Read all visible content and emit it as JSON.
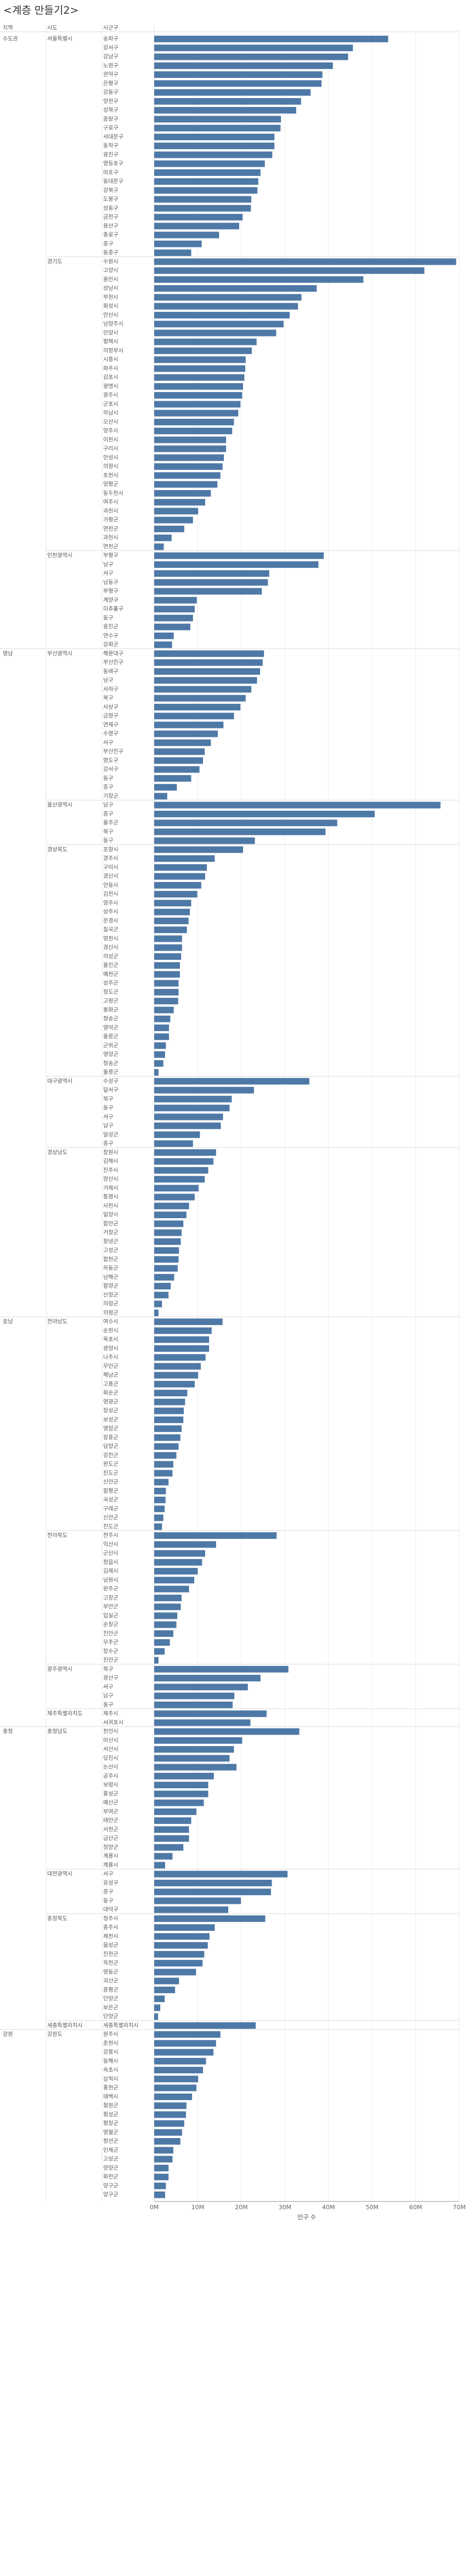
{
  "page_title": "<계층 만들기2>",
  "chart_data": {
    "type": "bar",
    "orientation": "horizontal",
    "column_headers": [
      "지역",
      "시도",
      "시군구"
    ],
    "xlabel": "인구 수",
    "x_ticks": [
      "0M",
      "10M",
      "20M",
      "30M",
      "40M",
      "50M",
      "60M",
      "70M"
    ],
    "xlim": [
      0,
      70
    ],
    "bar_color": "#4e79a7",
    "groups": [
      {
        "region": "수도권",
        "sido": "서울특별시",
        "items": [
          [
            "송파구",
            53.7
          ],
          [
            "강서구",
            45.6
          ],
          [
            "강남구",
            44.5
          ],
          [
            "노원구",
            41.0
          ],
          [
            "관악구",
            38.6
          ],
          [
            "은평구",
            38.4
          ],
          [
            "강동구",
            35.9
          ],
          [
            "양천구",
            33.7
          ],
          [
            "성북구",
            32.6
          ],
          [
            "중랑구",
            29.1
          ],
          [
            "구로구",
            29.0
          ],
          [
            "서대문구",
            27.6
          ],
          [
            "동작구",
            27.6
          ],
          [
            "광진구",
            27.1
          ],
          [
            "영등포구",
            25.4
          ],
          [
            "마포구",
            24.4
          ],
          [
            "동대문구",
            23.9
          ],
          [
            "강북구",
            23.7
          ],
          [
            "도봉구",
            22.3
          ],
          [
            "성동구",
            22.2
          ],
          [
            "금천구",
            20.3
          ],
          [
            "용산구",
            19.5
          ],
          [
            "종로구",
            14.9
          ],
          [
            "중구",
            10.9
          ],
          [
            "동중구",
            8.5
          ]
        ]
      },
      {
        "region": "",
        "sido": "경기도",
        "items": [
          [
            "수원시",
            69.3
          ],
          [
            "고양시",
            62.0
          ],
          [
            "용인시",
            48.0
          ],
          [
            "성남시",
            37.3
          ],
          [
            "부천시",
            33.8
          ],
          [
            "화성시",
            33.0
          ],
          [
            "안산시",
            31.1
          ],
          [
            "남양주시",
            29.7
          ],
          [
            "안양시",
            28.0
          ],
          [
            "평택시",
            23.5
          ],
          [
            "의정부시",
            22.4
          ],
          [
            "시흥시",
            21.0
          ],
          [
            "파주시",
            20.9
          ],
          [
            "김포시",
            20.7
          ],
          [
            "광명시",
            20.4
          ],
          [
            "광주시",
            20.2
          ],
          [
            "군포시",
            19.8
          ],
          [
            "하남시",
            19.3
          ],
          [
            "오산시",
            18.3
          ],
          [
            "양주시",
            17.9
          ],
          [
            "이천시",
            16.5
          ],
          [
            "구리시",
            16.5
          ],
          [
            "안성시",
            16.0
          ],
          [
            "의왕시",
            15.7
          ],
          [
            "포천시",
            15.2
          ],
          [
            "양평군",
            14.5
          ],
          [
            "동두천시",
            13.0
          ],
          [
            "여주시",
            11.7
          ],
          [
            "과천시",
            10.1
          ],
          [
            "가평군",
            8.9
          ],
          [
            "연천군",
            6.9
          ],
          [
            "과천시",
            4.0
          ],
          [
            "연천군",
            2.2
          ]
        ]
      },
      {
        "region": "",
        "sido": "인천광역시",
        "items": [
          [
            "부평구",
            38.9
          ],
          [
            "남구",
            37.7
          ],
          [
            "서구",
            26.4
          ],
          [
            "남동구",
            26.1
          ],
          [
            "부평구",
            24.7
          ],
          [
            "계양구",
            9.8
          ],
          [
            "미추홀구",
            9.3
          ],
          [
            "동구",
            8.9
          ],
          [
            "옹진군",
            8.3
          ],
          [
            "연수구",
            4.5
          ],
          [
            "강화군",
            4.1
          ]
        ]
      },
      {
        "region": "영남",
        "sido": "부산광역시",
        "items": [
          [
            "해운대구",
            25.2
          ],
          [
            "부산진구",
            24.9
          ],
          [
            "동래구",
            24.3
          ],
          [
            "남구",
            23.6
          ],
          [
            "사하구",
            22.3
          ],
          [
            "북구",
            21.0
          ],
          [
            "사상구",
            19.8
          ],
          [
            "금정구",
            18.3
          ],
          [
            "연제구",
            15.9
          ],
          [
            "수영구",
            14.6
          ],
          [
            "서구",
            13.0
          ],
          [
            "부산진구",
            11.6
          ],
          [
            "영도구",
            11.2
          ],
          [
            "강서구",
            10.4
          ],
          [
            "동구",
            8.5
          ],
          [
            "중구",
            5.2
          ],
          [
            "기장군",
            3.0
          ]
        ]
      },
      {
        "region": "",
        "sido": "울산광역시",
        "items": [
          [
            "남구",
            65.7
          ],
          [
            "중구",
            50.6
          ],
          [
            "울주군",
            42.0
          ],
          [
            "북구",
            39.3
          ],
          [
            "동구",
            23.1
          ]
        ]
      },
      {
        "region": "",
        "sido": "경상북도",
        "items": [
          [
            "포항시",
            20.4
          ],
          [
            "경주시",
            13.9
          ],
          [
            "구미시",
            12.1
          ],
          [
            "경산시",
            11.7
          ],
          [
            "안동시",
            10.8
          ],
          [
            "김천시",
            9.9
          ],
          [
            "영주시",
            8.5
          ],
          [
            "상주시",
            8.2
          ],
          [
            "문경시",
            7.9
          ],
          [
            "칠곡군",
            7.5
          ],
          [
            "영천시",
            6.4
          ],
          [
            "경산시",
            6.4
          ],
          [
            "의성군",
            6.2
          ],
          [
            "울진군",
            5.9
          ],
          [
            "예천군",
            5.9
          ],
          [
            "성주군",
            5.6
          ],
          [
            "청도군",
            5.6
          ],
          [
            "고령군",
            5.5
          ],
          [
            "봉화군",
            4.5
          ],
          [
            "청송군",
            3.7
          ],
          [
            "영덕군",
            3.4
          ],
          [
            "울릉군",
            3.4
          ],
          [
            "군위군",
            2.7
          ],
          [
            "영양군",
            2.5
          ],
          [
            "청송군",
            2.1
          ],
          [
            "울릉군",
            1.0
          ]
        ]
      },
      {
        "region": "",
        "sido": "대구광역시",
        "items": [
          [
            "수성구",
            35.6
          ],
          [
            "달서구",
            22.9
          ],
          [
            "북구",
            17.8
          ],
          [
            "동구",
            17.3
          ],
          [
            "서구",
            15.8
          ],
          [
            "남구",
            15.3
          ],
          [
            "달성군",
            10.5
          ],
          [
            "중구",
            8.9
          ]
        ]
      },
      {
        "region": "",
        "sido": "경상남도",
        "items": [
          [
            "창원시",
            14.2
          ],
          [
            "김해시",
            13.6
          ],
          [
            "진주시",
            12.4
          ],
          [
            "양산시",
            11.6
          ],
          [
            "거제시",
            10.2
          ],
          [
            "통영시",
            9.3
          ],
          [
            "사천시",
            8.0
          ],
          [
            "밀양시",
            7.4
          ],
          [
            "함안군",
            6.7
          ],
          [
            "거창군",
            6.3
          ],
          [
            "창녕군",
            6.1
          ],
          [
            "고성군",
            5.7
          ],
          [
            "합천군",
            5.6
          ],
          [
            "하동군",
            5.4
          ],
          [
            "남해군",
            4.6
          ],
          [
            "함양군",
            3.8
          ],
          [
            "산청군",
            3.3
          ],
          [
            "의령군",
            1.8
          ],
          [
            "의령군",
            1.0
          ]
        ]
      },
      {
        "region": "호남",
        "sido": "전라남도",
        "items": [
          [
            "여수시",
            15.7
          ],
          [
            "순천시",
            13.2
          ],
          [
            "목포시",
            12.6
          ],
          [
            "광양시",
            12.6
          ],
          [
            "나주시",
            11.8
          ],
          [
            "무안군",
            10.7
          ],
          [
            "해남군",
            10.1
          ],
          [
            "고흥군",
            9.3
          ],
          [
            "화순군",
            7.6
          ],
          [
            "영광군",
            7.1
          ],
          [
            "장성군",
            6.8
          ],
          [
            "보성군",
            6.7
          ],
          [
            "영암군",
            6.3
          ],
          [
            "장흥군",
            6.0
          ],
          [
            "담양군",
            5.6
          ],
          [
            "강진군",
            5.1
          ],
          [
            "완도군",
            4.4
          ],
          [
            "진도군",
            4.2
          ],
          [
            "신안군",
            3.3
          ],
          [
            "함평군",
            2.7
          ],
          [
            "곡성군",
            2.6
          ],
          [
            "구례군",
            2.4
          ],
          [
            "신안군",
            2.1
          ],
          [
            "진도군",
            1.8
          ]
        ]
      },
      {
        "region": "",
        "sido": "전라북도",
        "items": [
          [
            "전주시",
            28.1
          ],
          [
            "익산시",
            14.2
          ],
          [
            "군산시",
            11.7
          ],
          [
            "정읍시",
            11.0
          ],
          [
            "김제시",
            10.0
          ],
          [
            "남원시",
            9.2
          ],
          [
            "완주군",
            8.0
          ],
          [
            "고창군",
            6.3
          ],
          [
            "부안군",
            6.1
          ],
          [
            "임실군",
            5.3
          ],
          [
            "순창군",
            5.1
          ],
          [
            "진안군",
            4.4
          ],
          [
            "무주군",
            3.6
          ],
          [
            "장수군",
            2.4
          ],
          [
            "진안군",
            1.0
          ]
        ]
      },
      {
        "region": "",
        "sido": "광주광역시",
        "items": [
          [
            "북구",
            30.8
          ],
          [
            "광산구",
            24.4
          ],
          [
            "서구",
            21.5
          ],
          [
            "남구",
            18.4
          ],
          [
            "동구",
            18.0
          ]
        ]
      },
      {
        "region": "",
        "sido": "제주특별자치도",
        "items": [
          [
            "제주시",
            25.8
          ],
          [
            "서귀포시",
            22.1
          ]
        ]
      },
      {
        "region": "충청",
        "sido": "충청남도",
        "items": [
          [
            "천안시",
            33.3
          ],
          [
            "아산시",
            20.2
          ],
          [
            "서산시",
            18.3
          ],
          [
            "당진시",
            17.3
          ],
          [
            "논산시",
            18.9
          ],
          [
            "공주시",
            13.7
          ],
          [
            "보령시",
            12.4
          ],
          [
            "홍성군",
            12.4
          ],
          [
            "예산군",
            11.4
          ],
          [
            "부여군",
            9.7
          ],
          [
            "태안군",
            8.5
          ],
          [
            "서천군",
            8.0
          ],
          [
            "금산군",
            8.0
          ],
          [
            "청양군",
            6.7
          ],
          [
            "계룡시",
            4.2
          ],
          [
            "계룡시",
            2.5
          ]
        ]
      },
      {
        "region": "",
        "sido": "대전광역시",
        "items": [
          [
            "서구",
            30.6
          ],
          [
            "유성구",
            27.0
          ],
          [
            "중구",
            26.8
          ],
          [
            "동구",
            19.9
          ],
          [
            "대덕구",
            17.0
          ]
        ]
      },
      {
        "region": "",
        "sido": "충청북도",
        "items": [
          [
            "청주시",
            25.5
          ],
          [
            "충주시",
            13.9
          ],
          [
            "제천시",
            12.7
          ],
          [
            "음성군",
            12.3
          ],
          [
            "진천군",
            11.5
          ],
          [
            "옥천군",
            11.1
          ],
          [
            "영동군",
            9.6
          ],
          [
            "괴산군",
            5.7
          ],
          [
            "증평군",
            4.8
          ],
          [
            "단양군",
            2.4
          ],
          [
            "보은군",
            1.4
          ],
          [
            "단양군",
            0.9
          ]
        ]
      },
      {
        "region": "",
        "sido": "세종특별자치시",
        "items": [
          [
            "세종특별자치시",
            23.3
          ]
        ]
      },
      {
        "region": "강원",
        "sido": "강원도",
        "items": [
          [
            "원주시",
            15.2
          ],
          [
            "춘천시",
            14.2
          ],
          [
            "강릉시",
            13.6
          ],
          [
            "동해시",
            11.9
          ],
          [
            "속초시",
            11.2
          ],
          [
            "삼척시",
            10.1
          ],
          [
            "홍천군",
            9.7
          ],
          [
            "태백시",
            8.7
          ],
          [
            "철원군",
            7.4
          ],
          [
            "횡성군",
            7.3
          ],
          [
            "평창군",
            6.9
          ],
          [
            "영월군",
            6.4
          ],
          [
            "정선군",
            6.0
          ],
          [
            "인제군",
            4.4
          ],
          [
            "고성군",
            4.2
          ],
          [
            "양양군",
            3.3
          ],
          [
            "화천군",
            3.3
          ],
          [
            "양구군",
            2.7
          ],
          [
            "양구군",
            2.5
          ]
        ]
      }
    ]
  }
}
